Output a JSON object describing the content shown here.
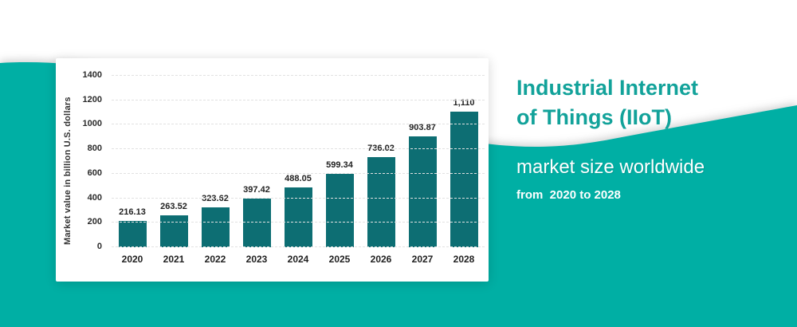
{
  "colors": {
    "background_teal": "#00AFA4",
    "bar_teal": "#0D6E73",
    "title_teal": "#12A29A",
    "text_dark": "#2B2B2B",
    "gridline": "#E1E1E1",
    "white": "#FFFFFF"
  },
  "header": {
    "title_line1": "Industrial Internet",
    "title_line2": "of Things (IIoT)",
    "subtitle": "market size worldwide",
    "tagline": "from  2020 to 2028"
  },
  "chart_data": {
    "type": "bar",
    "title": "Industrial Internet of Things (IIoT) market size worldwide from 2020 to 2028",
    "xlabel": "",
    "ylabel": "Market value in billion U.S. dollars",
    "categories": [
      "2020",
      "2021",
      "2022",
      "2023",
      "2024",
      "2025",
      "2026",
      "2027",
      "2028"
    ],
    "values": [
      216.13,
      263.52,
      323.62,
      397.42,
      488.05,
      599.34,
      736.02,
      903.87,
      1110
    ],
    "value_labels": [
      "216.13",
      "263.52",
      "323.62",
      "397.42",
      "488.05",
      "599.34",
      "736.02",
      "903.87",
      "1,110"
    ],
    "ylim": [
      0,
      1400
    ],
    "yticks": [
      0,
      200,
      400,
      600,
      800,
      1000,
      1200,
      1400
    ],
    "grid": "horizontal-dashed",
    "legend": "none",
    "bar_color": "#0D6E73"
  }
}
